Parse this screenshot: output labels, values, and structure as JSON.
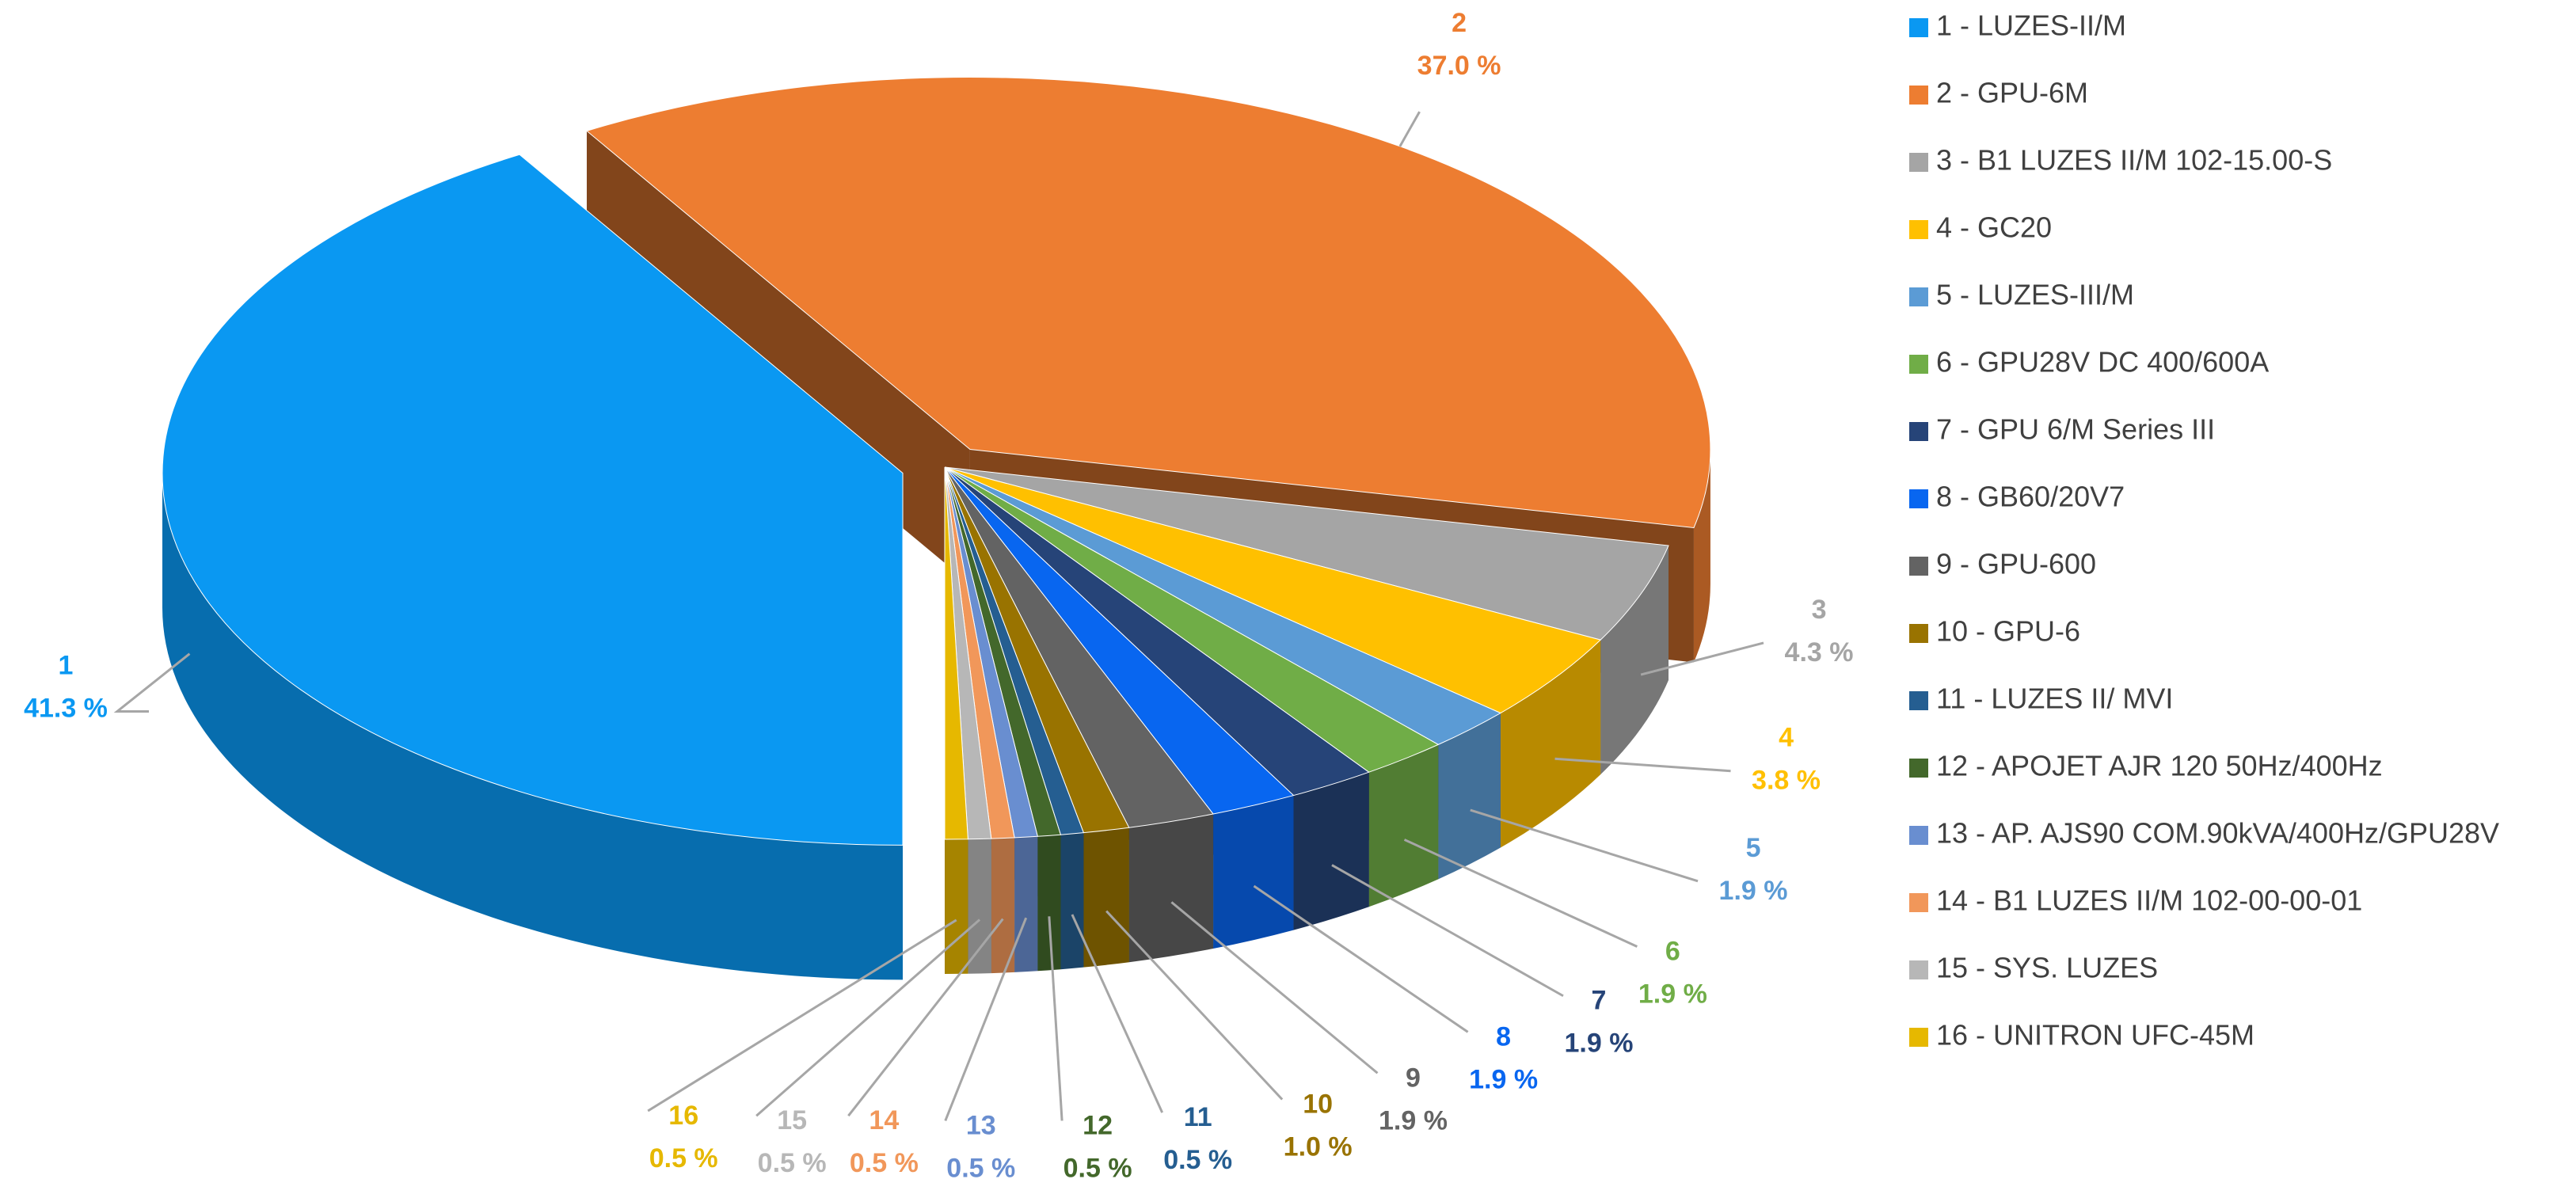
{
  "chart_data": {
    "type": "pie3d",
    "categories": [
      "1  -  LUZES-II/M",
      "2  -  GPU-6M",
      "3  -  B1 LUZES II/M 102-15.00-S",
      "4  -  GC20",
      "5  -  LUZES-III/M",
      "6  -  GPU28V DC 400/600A",
      "7  -  GPU 6/M Series III",
      "8  -  GB60/20V7",
      "9  -  GPU-600",
      "10  -  GPU-6",
      "11  -  LUZES II/ MVI",
      "12  -  APOJET AJR 120 50Hz/400Hz",
      "13  -  AP. AJS90 COM.90kVA/400Hz/GPU28V",
      "14  -  B1 LUZES II/M 102-00-00-01",
      "15  -  SYS. LUZES",
      "16  -  UNITRON UFC-45M"
    ],
    "labels": [
      "1",
      "2",
      "3",
      "4",
      "5",
      "6",
      "7",
      "8",
      "9",
      "10",
      "11",
      "12",
      "13",
      "14",
      "15",
      "16"
    ],
    "values": [
      41.3,
      37.0,
      4.3,
      3.8,
      1.9,
      1.9,
      1.9,
      1.9,
      1.9,
      1.0,
      0.5,
      0.5,
      0.5,
      0.5,
      0.5,
      0.5
    ],
    "value_labels": [
      "41.3 %",
      "37.0 %",
      "4.3 %",
      "3.8 %",
      "1.9 %",
      "1.9 %",
      "1.9 %",
      "1.9 %",
      "1.9 %",
      "1.0 %",
      "0.5 %",
      "0.5 %",
      "0.5 %",
      "0.5 %",
      "0.5 %",
      "0.5 %"
    ],
    "colors": [
      "#0a98f2",
      "#ed7d31",
      "#a5a5a5",
      "#ffc000",
      "#5b9bd5",
      "#70ad47",
      "#264478",
      "#0866f0",
      "#636363",
      "#997300",
      "#255e91",
      "#43682b",
      "#698ed0",
      "#f1975a",
      "#b7b7b7",
      "#e6b800"
    ],
    "legend": "right"
  }
}
